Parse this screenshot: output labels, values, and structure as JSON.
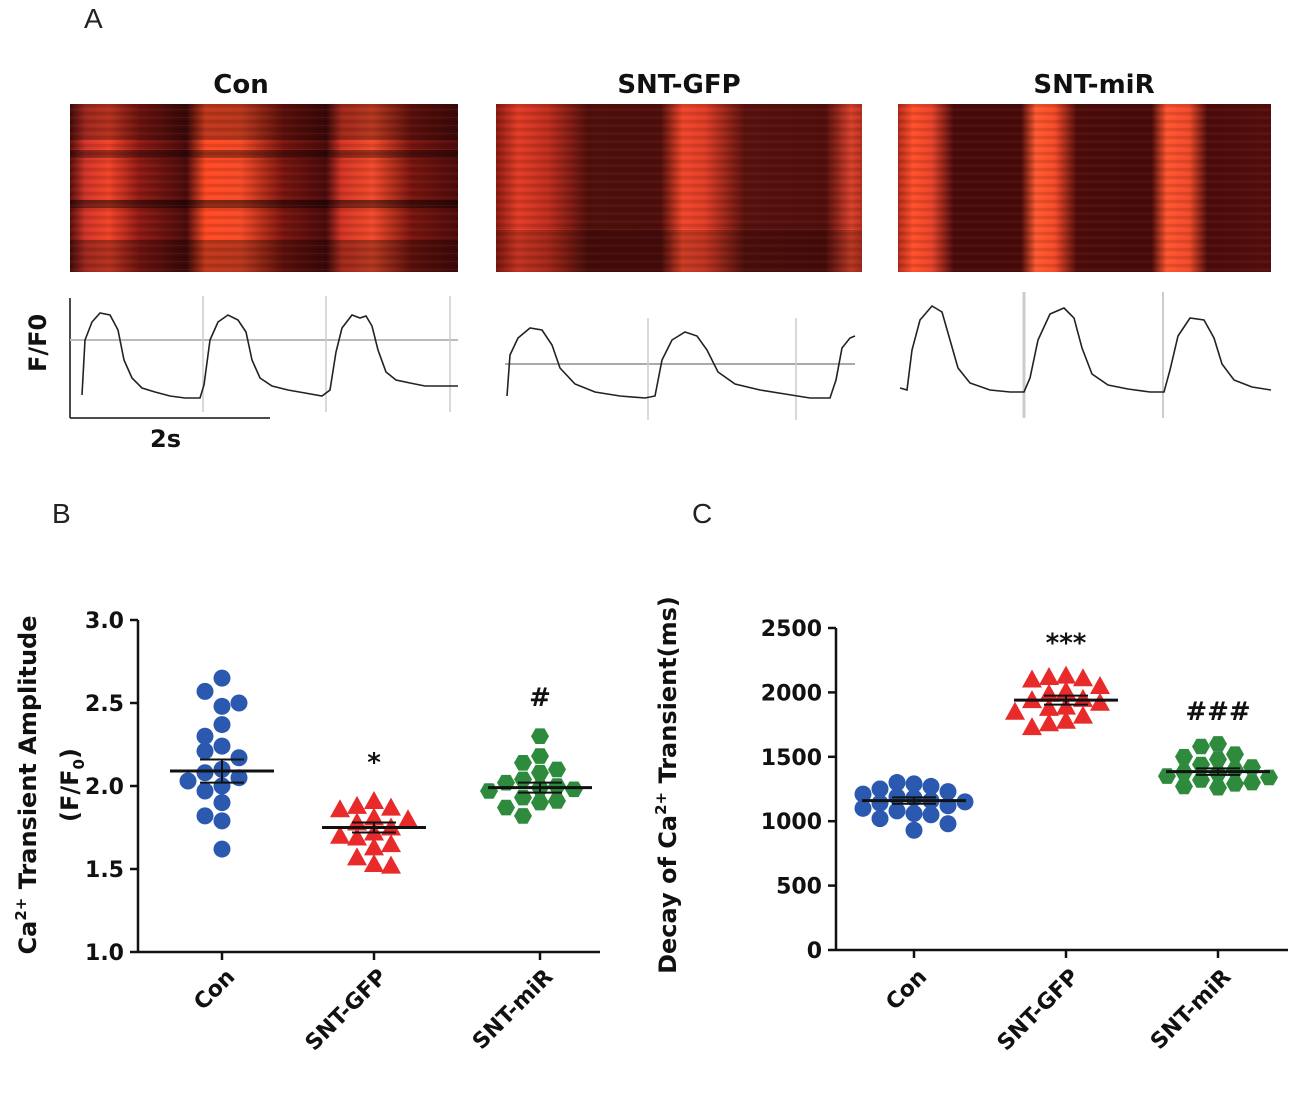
{
  "panels": {
    "a": {
      "letter": "A"
    },
    "b": {
      "letter": "B"
    },
    "c": {
      "letter": "C"
    }
  },
  "linescans": {
    "titles": [
      "Con",
      "SNT-GFP",
      "SNT-miR"
    ],
    "trace_ylabel": "F/F0",
    "scale_bar_label": "2s",
    "colors": {
      "bright": "#ff4a1f",
      "dark": "#4a0a0a",
      "mid": "#a01c12"
    }
  },
  "chart_data": [
    {
      "type": "scatter",
      "title": "",
      "ylabel": "Ca2+ Transient Amplitude (F/F0)",
      "ylim": [
        1.0,
        3.0
      ],
      "yticks": [
        "1.0",
        "1.5",
        "2.0",
        "2.5",
        "3.0"
      ],
      "categories": [
        "Con",
        "SNT-GFP",
        "SNT-miR"
      ],
      "significance": [
        "",
        "*",
        "#"
      ],
      "groups": [
        {
          "name": "Con",
          "color": "#2b59b0",
          "marker": "circle",
          "mean": 2.09,
          "sem": 0.07,
          "values": [
            2.65,
            2.57,
            2.48,
            2.5,
            2.37,
            2.3,
            2.24,
            2.21,
            2.17,
            2.1,
            2.08,
            2.05,
            2.03,
            2.0,
            1.97,
            1.9,
            1.82,
            1.79,
            1.62
          ]
        },
        {
          "name": "SNT-GFP",
          "color": "#e82a2a",
          "marker": "triangle",
          "mean": 1.75,
          "sem": 0.03,
          "values": [
            1.91,
            1.88,
            1.87,
            1.86,
            1.81,
            1.8,
            1.78,
            1.75,
            1.72,
            1.7,
            1.69,
            1.65,
            1.63,
            1.57,
            1.53,
            1.52
          ]
        },
        {
          "name": "SNT-miR",
          "color": "#2e8b3e",
          "marker": "hexagon",
          "mean": 1.99,
          "sem": 0.03,
          "values": [
            2.3,
            2.18,
            2.14,
            2.1,
            2.08,
            2.04,
            2.02,
            2.0,
            1.99,
            1.98,
            1.97,
            1.93,
            1.91,
            1.9,
            1.87,
            1.82
          ]
        }
      ]
    },
    {
      "type": "scatter",
      "title": "",
      "ylabel": "Decay of Ca2+ Transient(ms)",
      "ylim": [
        0,
        2500
      ],
      "yticks": [
        "0",
        "500",
        "1000",
        "1500",
        "2000",
        "2500"
      ],
      "categories": [
        "Con",
        "SNT-GFP",
        "SNT-miR"
      ],
      "significance": [
        "",
        "***",
        "###"
      ],
      "groups": [
        {
          "name": "Con",
          "color": "#2b59b0",
          "marker": "circle",
          "mean": 1160,
          "sem": 25,
          "values": [
            1290,
            1300,
            1270,
            1250,
            1230,
            1210,
            1190,
            1180,
            1160,
            1150,
            1140,
            1120,
            1100,
            1080,
            1060,
            1050,
            1020,
            980,
            930
          ]
        },
        {
          "name": "SNT-GFP",
          "color": "#e82a2a",
          "marker": "triangle",
          "mean": 1940,
          "sem": 35,
          "values": [
            2130,
            2120,
            2110,
            2100,
            2050,
            2010,
            1990,
            1950,
            1940,
            1920,
            1890,
            1880,
            1850,
            1820,
            1780,
            1760,
            1730
          ]
        },
        {
          "name": "SNT-miR",
          "color": "#2e8b3e",
          "marker": "hexagon",
          "mean": 1385,
          "sem": 25,
          "values": [
            1600,
            1580,
            1520,
            1500,
            1480,
            1440,
            1420,
            1400,
            1380,
            1370,
            1350,
            1340,
            1320,
            1300,
            1290,
            1270,
            1260
          ]
        }
      ]
    }
  ]
}
